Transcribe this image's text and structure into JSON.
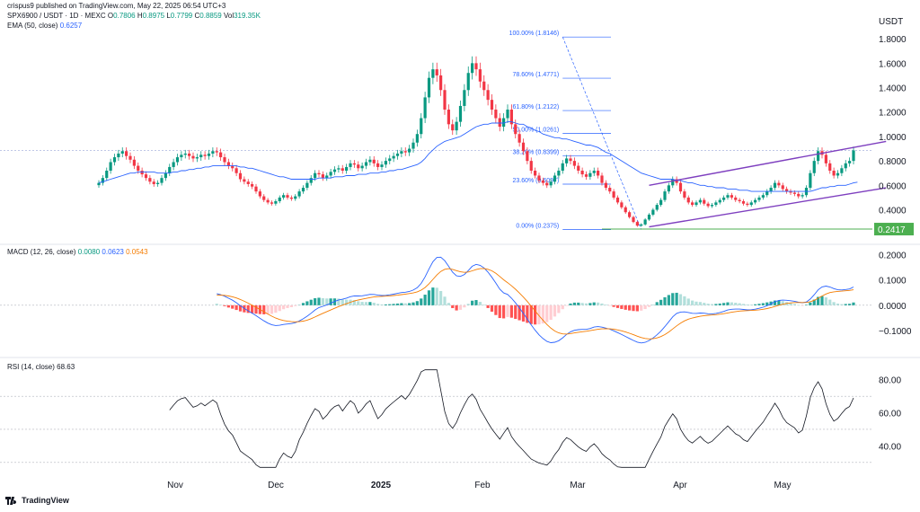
{
  "header": {
    "publish": "crispus9 published on TradingView.com, May 22, 2025 06:54 UTC+3",
    "symbol": "SPX6900 / USDT · 1D · MEXC",
    "o_label": "O",
    "o_val": "0.7806",
    "h_label": "H",
    "h_val": "0.8975",
    "l_label": "L",
    "l_val": "0.7799",
    "c_label": "C",
    "c_val": "0.8859",
    "vol_label": "Vol",
    "vol_val": "319.35K",
    "ema_label": "EMA (50, close)",
    "ema_val": "0.6257",
    "macd_label": "MACD (12, 26, close)",
    "macd_v1": "0.0080",
    "macd_v2": "0.0623",
    "macd_v3": "0.0543",
    "rsi_label": "RSI (14, close)",
    "rsi_val": "68.63"
  },
  "footer": {
    "brand": "TradingView"
  },
  "colors": {
    "up": "#089981",
    "down": "#f23645",
    "ema": "#2962ff",
    "signal": "#f57c00",
    "channel": "#7e3fbf",
    "support": "#4caf50",
    "fib": "#2962ff"
  },
  "chart_data": {
    "type": "candlestick",
    "x_axis": {
      "labels": [
        "Nov",
        "Dec",
        "2025",
        "Feb",
        "Mar",
        "Apr",
        "May"
      ]
    },
    "price": {
      "unit": "USDT",
      "ticks": [
        "1.8000",
        "1.6000",
        "1.4000",
        "1.2000",
        "1.0000",
        "0.8000",
        "0.6000",
        "0.4000"
      ],
      "last_price_label": "0.2417",
      "fib_levels": [
        {
          "label": "100.00% (1.8146)",
          "value": 1.8146
        },
        {
          "label": "78.60% (1.4771)",
          "value": 1.4771
        },
        {
          "label": "61.80% (1.2122)",
          "value": 1.2122
        },
        {
          "label": "50.00% (1.0261)",
          "value": 1.0261
        },
        {
          "label": "38.20% (0.8399)",
          "value": 0.8399
        },
        {
          "label": "23.60% (0.6097)",
          "value": 0.6097
        },
        {
          "label": "0.00% (0.2375)",
          "value": 0.2375
        }
      ],
      "closes": [
        0.62,
        0.66,
        0.72,
        0.79,
        0.83,
        0.86,
        0.88,
        0.84,
        0.81,
        0.76,
        0.72,
        0.69,
        0.66,
        0.63,
        0.61,
        0.62,
        0.66,
        0.7,
        0.75,
        0.79,
        0.83,
        0.85,
        0.86,
        0.84,
        0.82,
        0.83,
        0.85,
        0.84,
        0.86,
        0.88,
        0.87,
        0.83,
        0.79,
        0.76,
        0.74,
        0.7,
        0.65,
        0.63,
        0.61,
        0.59,
        0.55,
        0.51,
        0.48,
        0.46,
        0.45,
        0.47,
        0.5,
        0.52,
        0.5,
        0.49,
        0.51,
        0.55,
        0.58,
        0.62,
        0.66,
        0.7,
        0.69,
        0.66,
        0.68,
        0.71,
        0.73,
        0.74,
        0.72,
        0.75,
        0.78,
        0.77,
        0.74,
        0.76,
        0.79,
        0.81,
        0.78,
        0.75,
        0.77,
        0.8,
        0.82,
        0.84,
        0.86,
        0.88,
        0.87,
        0.9,
        0.95,
        1.02,
        1.15,
        1.32,
        1.48,
        1.55,
        1.5,
        1.38,
        1.22,
        1.1,
        1.05,
        1.12,
        1.25,
        1.38,
        1.52,
        1.6,
        1.55,
        1.45,
        1.38,
        1.3,
        1.22,
        1.15,
        1.08,
        1.15,
        1.22,
        1.1,
        1.02,
        0.95,
        0.88,
        0.8,
        0.72,
        0.68,
        0.64,
        0.62,
        0.6,
        0.63,
        0.68,
        0.72,
        0.78,
        0.82,
        0.8,
        0.76,
        0.72,
        0.69,
        0.67,
        0.7,
        0.72,
        0.68,
        0.62,
        0.58,
        0.55,
        0.5,
        0.46,
        0.42,
        0.38,
        0.34,
        0.3,
        0.27,
        0.28,
        0.32,
        0.36,
        0.4,
        0.44,
        0.48,
        0.55,
        0.6,
        0.65,
        0.62,
        0.55,
        0.5,
        0.46,
        0.44,
        0.46,
        0.48,
        0.45,
        0.43,
        0.44,
        0.46,
        0.48,
        0.5,
        0.52,
        0.5,
        0.48,
        0.47,
        0.45,
        0.44,
        0.46,
        0.48,
        0.5,
        0.52,
        0.55,
        0.58,
        0.62,
        0.6,
        0.57,
        0.55,
        0.54,
        0.53,
        0.51,
        0.52,
        0.58,
        0.7,
        0.8,
        0.88,
        0.85,
        0.78,
        0.72,
        0.68,
        0.7,
        0.74,
        0.78,
        0.8,
        0.886
      ],
      "ema": [
        0.62,
        0.63,
        0.64,
        0.65,
        0.66,
        0.67,
        0.68,
        0.69,
        0.7,
        0.7,
        0.71,
        0.71,
        0.71,
        0.71,
        0.71,
        0.7,
        0.7,
        0.7,
        0.7,
        0.71,
        0.71,
        0.72,
        0.72,
        0.73,
        0.73,
        0.74,
        0.74,
        0.75,
        0.75,
        0.76,
        0.76,
        0.76,
        0.76,
        0.76,
        0.76,
        0.76,
        0.75,
        0.75,
        0.74,
        0.74,
        0.73,
        0.72,
        0.71,
        0.7,
        0.69,
        0.68,
        0.67,
        0.67,
        0.66,
        0.65,
        0.65,
        0.65,
        0.65,
        0.65,
        0.65,
        0.65,
        0.66,
        0.66,
        0.66,
        0.66,
        0.67,
        0.67,
        0.67,
        0.68,
        0.68,
        0.68,
        0.69,
        0.69,
        0.69,
        0.7,
        0.7,
        0.7,
        0.71,
        0.71,
        0.72,
        0.72,
        0.73,
        0.73,
        0.74,
        0.75,
        0.76,
        0.77,
        0.79,
        0.82,
        0.86,
        0.89,
        0.92,
        0.94,
        0.96,
        0.97,
        0.98,
        0.99,
        1.0,
        1.02,
        1.04,
        1.06,
        1.08,
        1.09,
        1.1,
        1.1,
        1.11,
        1.11,
        1.11,
        1.11,
        1.12,
        1.12,
        1.11,
        1.1,
        1.1,
        1.08,
        1.07,
        1.05,
        1.04,
        1.02,
        1.01,
        1.0,
        0.99,
        0.99,
        0.98,
        0.98,
        0.97,
        0.96,
        0.95,
        0.94,
        0.93,
        0.93,
        0.92,
        0.91,
        0.89,
        0.87,
        0.86,
        0.84,
        0.82,
        0.8,
        0.78,
        0.76,
        0.74,
        0.72,
        0.7,
        0.69,
        0.68,
        0.67,
        0.66,
        0.65,
        0.65,
        0.65,
        0.65,
        0.64,
        0.64,
        0.63,
        0.62,
        0.62,
        0.61,
        0.6,
        0.6,
        0.59,
        0.59,
        0.58,
        0.58,
        0.58,
        0.57,
        0.57,
        0.57,
        0.56,
        0.56,
        0.56,
        0.55,
        0.55,
        0.55,
        0.55,
        0.55,
        0.55,
        0.55,
        0.55,
        0.55,
        0.55,
        0.55,
        0.55,
        0.55,
        0.55,
        0.55,
        0.55,
        0.56,
        0.57,
        0.58,
        0.58,
        0.59,
        0.59,
        0.6,
        0.6,
        0.6,
        0.61,
        0.62,
        0.6257
      ],
      "channel_upper": {
        "start": [
          140,
          0.6
        ],
        "end": [
          198,
          0.96
        ]
      },
      "channel_lower": {
        "start": [
          140,
          0.26
        ],
        "end": [
          198,
          0.58
        ]
      },
      "support": 0.2417,
      "current": 0.8859,
      "range": [
        0.22,
        1.86
      ]
    },
    "macd": {
      "ticks": [
        "0.2000",
        "0.1000",
        "0.0000",
        "−0.1000"
      ],
      "range": [
        -0.15,
        0.22
      ],
      "start_index": 30
    },
    "rsi": {
      "ticks": [
        "80.00",
        "60.00",
        "40.00"
      ],
      "range": [
        25,
        88
      ],
      "bands": [
        70,
        50,
        30
      ],
      "start_index": 18
    }
  }
}
